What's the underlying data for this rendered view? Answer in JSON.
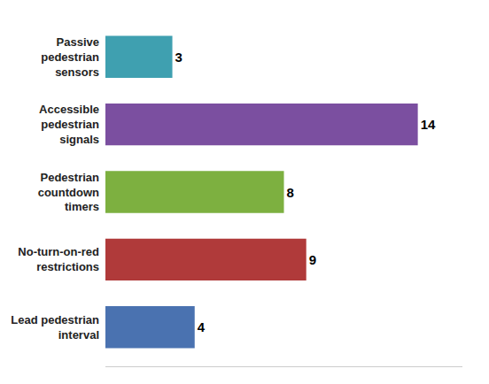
{
  "chart_data": {
    "type": "bar",
    "orientation": "horizontal",
    "categories": [
      "Lead pedestrian\ninterval",
      "No-turn-on-red\nrestrictions",
      "Pedestrian\ncountdown\ntimers",
      "Accessible\npedestrian\nsignals",
      "Passive\npedestrian\nsensors"
    ],
    "values": [
      4,
      9,
      8,
      14,
      3
    ],
    "colors": [
      "#4a72b0",
      "#b03a3a",
      "#7db040",
      "#7b4fa0",
      "#3fa0b0"
    ],
    "xlim": [
      0,
      16.0
    ],
    "grid": false,
    "data_labels": true,
    "tick_labels": "y"
  }
}
